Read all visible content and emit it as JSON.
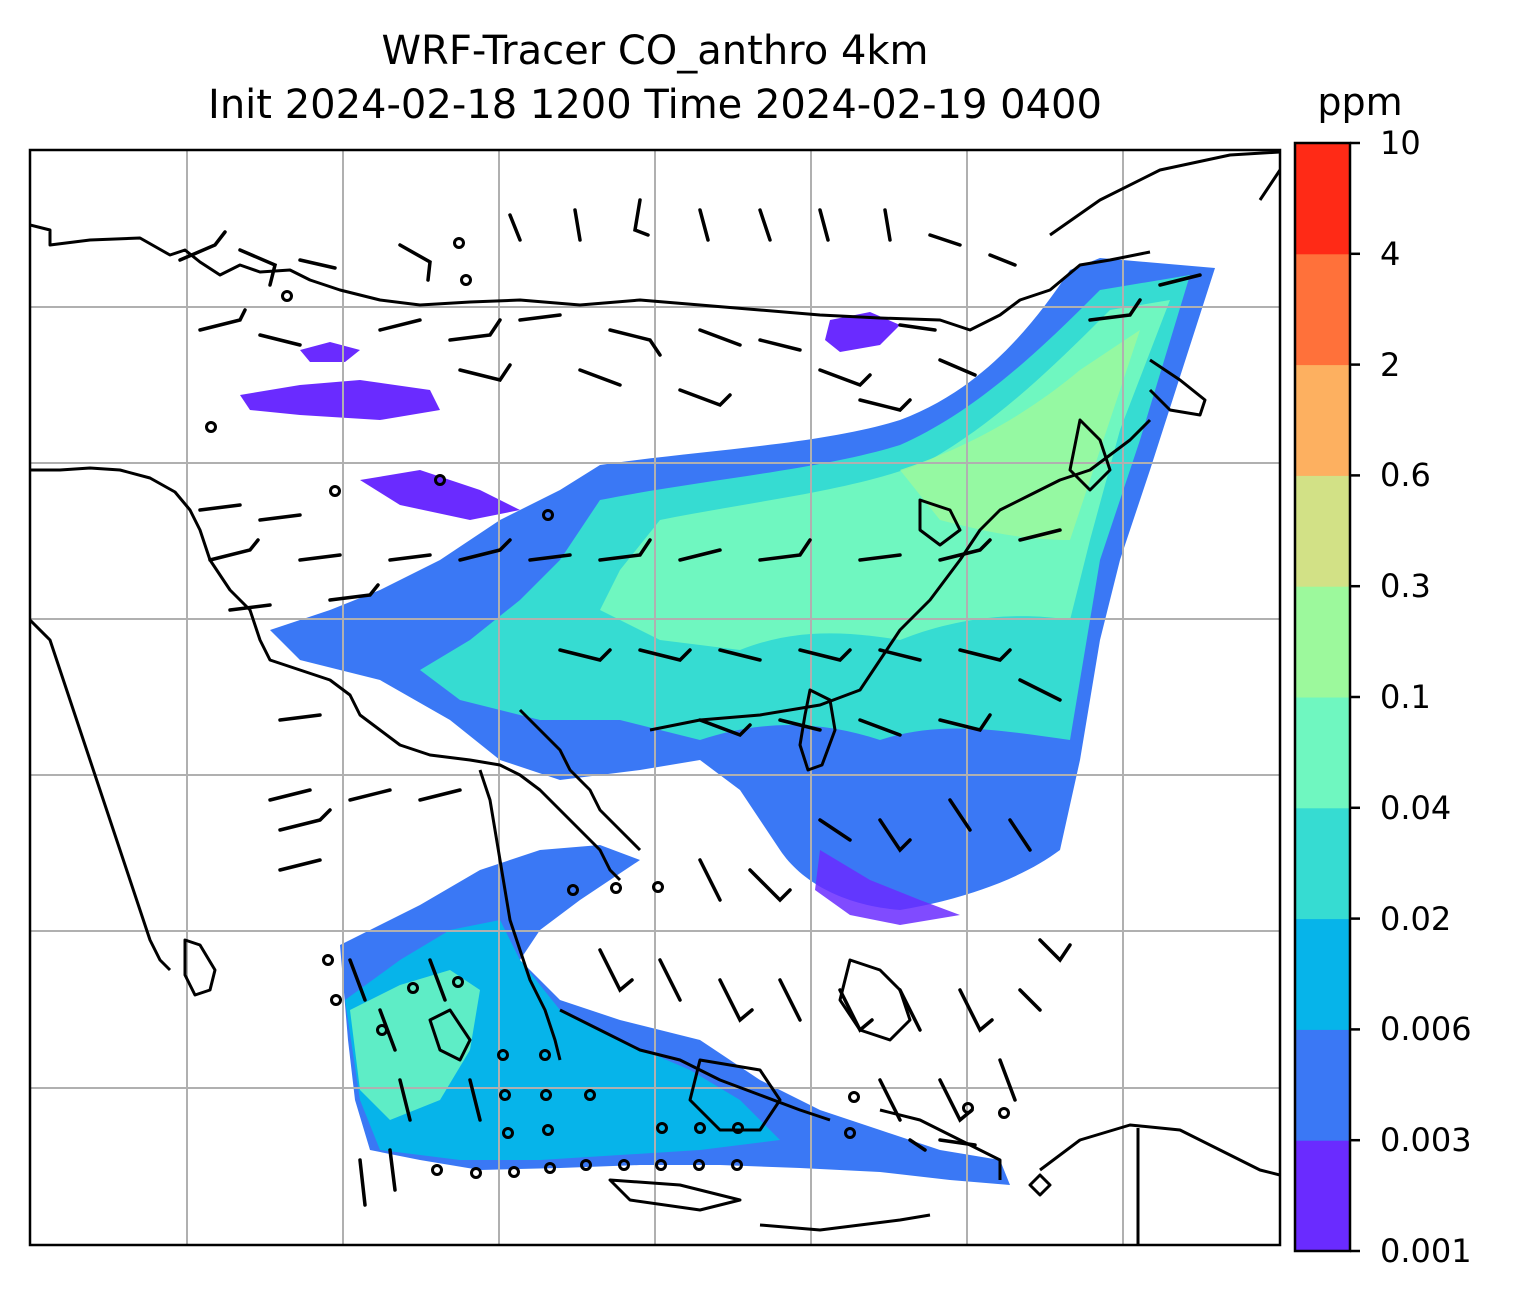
{
  "title": {
    "line1": "WRF-Tracer CO_anthro 4km",
    "line2": "Init 2024-02-18 1200 Time 2024-02-19 0400"
  },
  "colorbar": {
    "unit": "ppm",
    "levels": [
      "0.001",
      "0.003",
      "0.006",
      "0.02",
      "0.04",
      "0.1",
      "0.3",
      "0.6",
      "2",
      "4",
      "10"
    ],
    "colors": [
      "#6a2bff",
      "#3a78f5",
      "#06b4ea",
      "#36dcd2",
      "#6ff7c0",
      "#9cf99c",
      "#d2e186",
      "#fdb060",
      "#ff713a",
      "#ff2a16"
    ]
  },
  "map": {
    "variable": "CO_anthro",
    "gridlines": "on",
    "overlay": "wind barbs",
    "coastlines": "on"
  }
}
